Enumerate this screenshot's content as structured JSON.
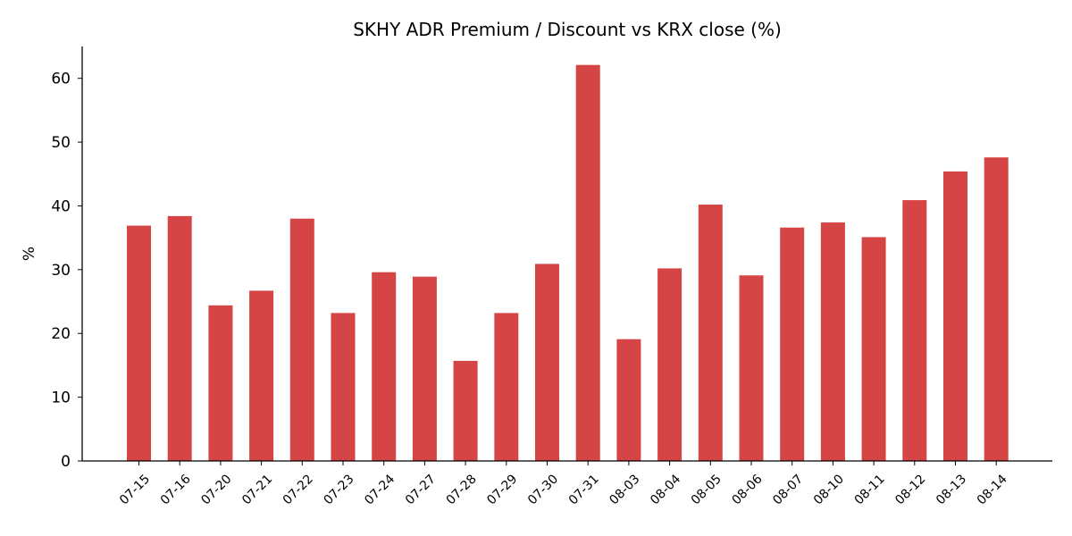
{
  "chart_data": {
    "type": "bar",
    "title": "SKHY ADR Premium / Discount vs KRX close (%)",
    "xlabel": "",
    "ylabel": "%",
    "ylim": [
      0,
      65
    ],
    "yticks": [
      0,
      10,
      20,
      30,
      40,
      50,
      60
    ],
    "grid": false,
    "bar_color": "#d64545",
    "categories": [
      "07-15",
      "07-16",
      "07-20",
      "07-21",
      "07-22",
      "07-23",
      "07-24",
      "07-27",
      "07-28",
      "07-29",
      "07-30",
      "07-31",
      "08-03",
      "08-04",
      "08-05",
      "08-06",
      "08-07",
      "08-10",
      "08-11",
      "08-12",
      "08-13",
      "08-14"
    ],
    "values": [
      36.9,
      38.4,
      24.4,
      26.7,
      38.0,
      23.2,
      29.6,
      28.9,
      15.7,
      23.2,
      30.9,
      62.1,
      19.1,
      30.2,
      40.2,
      29.1,
      36.6,
      37.4,
      35.1,
      40.9,
      45.4,
      47.6
    ]
  }
}
